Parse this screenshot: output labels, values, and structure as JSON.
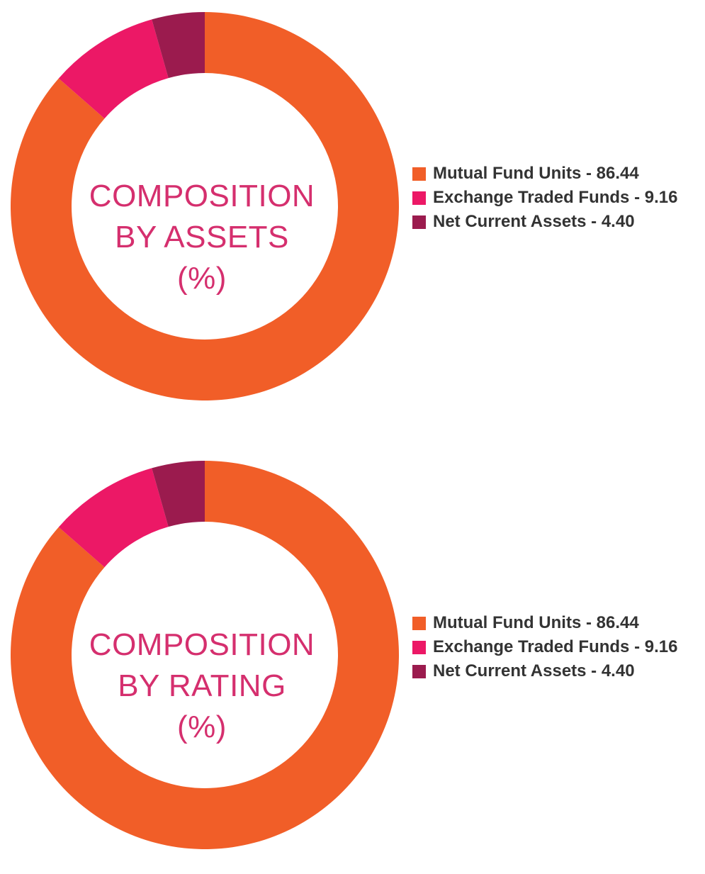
{
  "colors": {
    "mutual_fund_units": "#f15e28",
    "exchange_traded_funds": "#ec1866",
    "net_current_assets": "#9b1b4e",
    "center_text": "#d52f6e",
    "legend_text": "#333333"
  },
  "chart_data": [
    {
      "type": "pie",
      "style": "donut",
      "center_label": [
        "COMPOSITION",
        "BY ASSETS",
        "(%)"
      ],
      "categories": [
        "Mutual Fund Units",
        "Exchange Traded Funds",
        "Net Current Assets"
      ],
      "values": [
        86.44,
        9.16,
        4.4
      ],
      "value_labels": [
        "86.44",
        "9.16",
        "4.40"
      ],
      "legend": [
        "Mutual Fund Units - 86.44",
        "Exchange Traded Funds - 9.16",
        "Net Current Assets - 4.40"
      ],
      "legend_position": "right"
    },
    {
      "type": "pie",
      "style": "donut",
      "center_label": [
        "COMPOSITION",
        "BY RATING",
        "(%)"
      ],
      "categories": [
        "Mutual Fund Units",
        "Exchange Traded Funds",
        "Net Current Assets"
      ],
      "values": [
        86.44,
        9.16,
        4.4
      ],
      "value_labels": [
        "86.44",
        "9.16",
        "4.40"
      ],
      "legend": [
        "Mutual Fund Units - 86.44",
        "Exchange Traded Funds - 9.16",
        "Net Current Assets - 4.40"
      ],
      "legend_position": "right"
    }
  ]
}
